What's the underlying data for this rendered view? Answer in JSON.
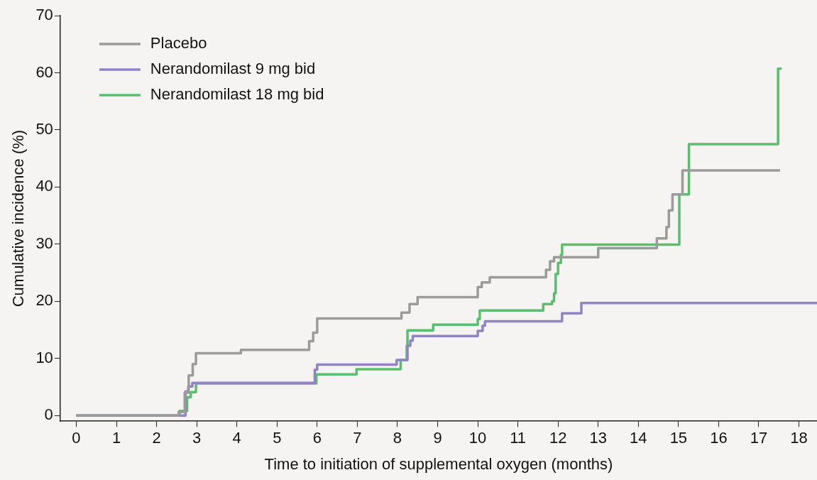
{
  "chart_data": {
    "type": "step",
    "xlabel": "Time to initiation of supplemental oxygen (months)",
    "ylabel": "Cumulative incidence (%)",
    "xlim": [
      -0.4,
      18.45
    ],
    "xticks": [
      0,
      1,
      2,
      3,
      4,
      5,
      6,
      7,
      8,
      9,
      10,
      11,
      12,
      13,
      14,
      15,
      16,
      17,
      18
    ],
    "ylim": [
      -1,
      70
    ],
    "yticks": [
      0,
      10,
      20,
      30,
      40,
      50,
      60,
      70
    ],
    "grid": false,
    "legend": "top left",
    "marker": "none",
    "line_style": "solid",
    "series": [
      {
        "name": "Placebo",
        "color": "#9b9b9b",
        "x": [
          0,
          2.55,
          2.7,
          2.8,
          2.9,
          2.98,
          4.1,
          5.8,
          5.9,
          6.0,
          8.1,
          8.3,
          8.5,
          10.0,
          10.1,
          10.3,
          11.7,
          11.8,
          11.9,
          13.0,
          14.46,
          14.7,
          14.76,
          14.85,
          15.1,
          17.53
        ],
        "values": [
          0,
          0.6,
          4,
          7,
          9,
          10.9,
          11.5,
          13,
          14.5,
          17,
          18,
          19.5,
          20.7,
          22.5,
          23.3,
          24.2,
          25.5,
          27,
          27.7,
          29.3,
          31,
          33,
          35.9,
          38.7,
          42.9,
          42.9
        ]
      },
      {
        "name": "Nerandomilast 9 mg bid",
        "color": "#9184c4",
        "x": [
          0,
          2.72,
          2.79,
          2.89,
          5.94,
          6.0,
          7.98,
          8.25,
          8.32,
          8.38,
          10.0,
          10.12,
          10.18,
          12.1,
          12.58,
          18.45
        ],
        "values": [
          0,
          4.2,
          5.1,
          5.7,
          8,
          8.9,
          9.7,
          12.2,
          13.1,
          13.9,
          14.8,
          15.7,
          16.5,
          17.9,
          19.7,
          19.7
        ]
      },
      {
        "name": "Nerandomilast 18 mg bid",
        "color": "#5bbd6e",
        "x": [
          0,
          2.57,
          2.76,
          2.85,
          2.98,
          5.98,
          6.98,
          8.08,
          8.23,
          8.25,
          8.89,
          10.0,
          10.05,
          11.63,
          11.85,
          11.9,
          11.94,
          12.0,
          12.07,
          12.1,
          15.02,
          15.26,
          17.48,
          17.57
        ],
        "values": [
          0,
          0.8,
          3.2,
          4.1,
          5.6,
          7.2,
          8.1,
          9.7,
          12.2,
          14.9,
          15.9,
          16.9,
          18.4,
          19.5,
          20,
          21.4,
          24.8,
          26.7,
          28.1,
          29.9,
          38.7,
          47.5,
          60.7,
          60.7
        ]
      }
    ]
  }
}
